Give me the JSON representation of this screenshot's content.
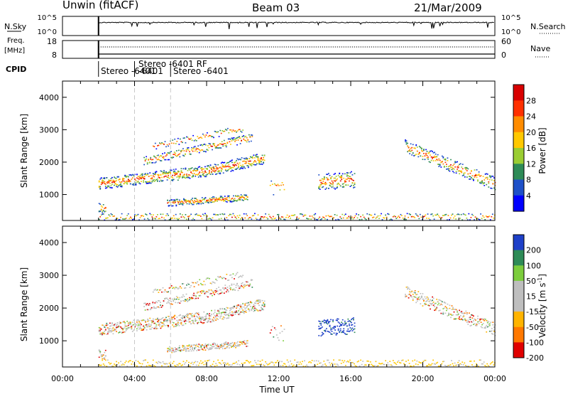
{
  "header": {
    "station": "Unwin (fitACF)",
    "beam": "Beam 03",
    "date": "21/Mar/2009"
  },
  "status_panels": {
    "nsky_label": "N.Sky",
    "nsky_ticks": [
      "10^5",
      "10^0"
    ],
    "nsearch_label": "N.Search",
    "freq_label_line1": "Freq.",
    "freq_label_line2": "[MHz]",
    "freq_ticks": [
      "18",
      "8"
    ],
    "nave_label": "Nave",
    "nave_ticks": [
      "60",
      "0"
    ],
    "cpid_label": "CPID",
    "cpid_segments": [
      {
        "label": "Stereo  -6401",
        "start": 2.0,
        "row": 2
      },
      {
        "label": "Stereo  -6401 RF",
        "start": 4.0,
        "row": 1,
        "label2": "-6401"
      },
      {
        "label": "Stereo  -6401",
        "start": 6.0,
        "row": 2
      }
    ]
  },
  "chart_data": [
    {
      "type": "heatmap",
      "panel": "power",
      "ylabel": "Slant Range [km]",
      "xlim": [
        0,
        24
      ],
      "ylim": [
        200,
        4500
      ],
      "yticks": [
        1000,
        2000,
        3000,
        4000
      ],
      "colorbar": {
        "label": "Power [dB]",
        "ticks": [
          "28",
          "24",
          "20",
          "16",
          "12",
          "8",
          "4"
        ],
        "colors": [
          "#d80000",
          "#ff3000",
          "#ff8c00",
          "#ffc800",
          "#9acd32",
          "#2e8b57",
          "#1e50c8",
          "#0000ff"
        ]
      }
    },
    {
      "type": "heatmap",
      "panel": "velocity",
      "ylabel": "Slant Range [km]",
      "xlabel": "Time UT",
      "xlim": [
        0,
        24
      ],
      "ylim": [
        200,
        4500
      ],
      "yticks": [
        1000,
        2000,
        3000,
        4000
      ],
      "xticks": [
        "00:00",
        "04:00",
        "08:00",
        "12:00",
        "16:00",
        "20:00",
        "00:00"
      ],
      "colorbar": {
        "label": "Velocity [m s",
        "label_sup": "-1",
        "label_end": "]",
        "ticks": [
          "200",
          "100",
          "50",
          "15",
          "-15",
          "-50",
          "-100",
          "-200"
        ],
        "colors": [
          "#1e40c8",
          "#2e8b57",
          "#7ccd3c",
          "#bebebe",
          "#bebebe",
          "#ffb400",
          "#ff7800",
          "#e00000"
        ]
      }
    }
  ],
  "colors": {
    "axis": "#000000",
    "guide_line": "#c8c8c8"
  }
}
